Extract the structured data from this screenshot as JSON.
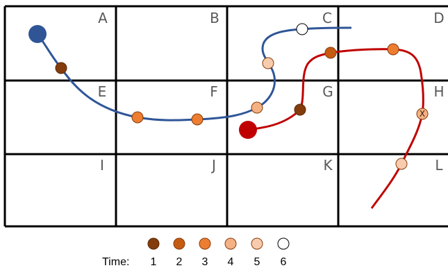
{
  "grid": {
    "cells": [
      {
        "id": "A",
        "label": "A"
      },
      {
        "id": "B",
        "label": "B"
      },
      {
        "id": "C",
        "label": "C"
      },
      {
        "id": "D",
        "label": "D"
      },
      {
        "id": "E",
        "label": "E"
      },
      {
        "id": "F",
        "label": "F"
      },
      {
        "id": "G",
        "label": "G"
      },
      {
        "id": "H",
        "label": "H"
      },
      {
        "id": "I",
        "label": "I"
      },
      {
        "id": "J",
        "label": "J"
      },
      {
        "id": "K",
        "label": "K"
      },
      {
        "id": "L",
        "label": "L"
      }
    ]
  },
  "trajectories": {
    "blue": {
      "color": "#2f5597",
      "start_color": "#2f5597"
    },
    "red": {
      "color": "#c00000",
      "start_color": "#c00000"
    }
  },
  "marker_note": "X",
  "legend": {
    "label": "Time:",
    "steps": [
      {
        "value": "1",
        "color": "#843c0c"
      },
      {
        "value": "2",
        "color": "#c55a11"
      },
      {
        "value": "3",
        "color": "#ed7d31"
      },
      {
        "value": "4",
        "color": "#f4b183"
      },
      {
        "value": "5",
        "color": "#f8cbad"
      },
      {
        "value": "6",
        "color": "#ffffff"
      }
    ]
  }
}
